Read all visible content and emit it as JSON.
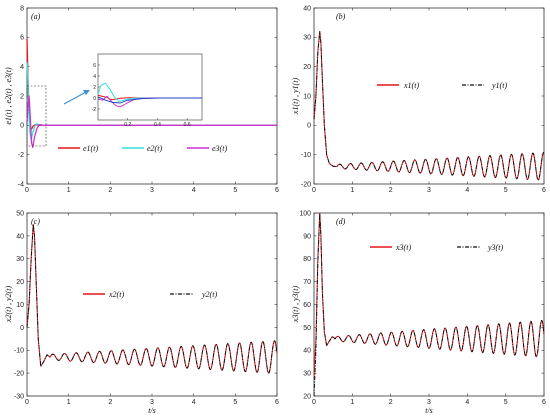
{
  "chart_data": [
    {
      "type": "line",
      "panel_label": "(a)",
      "xlabel": "",
      "ylabel": "e1(t) , e2(t) , e3(t)",
      "xlim": [
        0,
        6
      ],
      "ylim": [
        -4,
        8
      ],
      "xticks": [
        "0",
        "1",
        "2",
        "3",
        "4",
        "5",
        "6"
      ],
      "yticks": [
        "-4",
        "-2",
        "0",
        "2",
        "4",
        "6",
        "8"
      ],
      "legend_position": "center",
      "series": [
        {
          "name": "e1(t)",
          "color": "#e8151b",
          "x": [
            0,
            0.03,
            0.06,
            0.09,
            0.12,
            0.15,
            0.2,
            0.25,
            0.3,
            0.4,
            0.5,
            6
          ],
          "y": [
            5.9,
            2.5,
            0.3,
            -0.3,
            -0.2,
            -0.05,
            0.05,
            0.02,
            0,
            0,
            0,
            0
          ]
        },
        {
          "name": "e2(t)",
          "color": "#33e0e0",
          "x": [
            0,
            0.02,
            0.04,
            0.07,
            0.1,
            0.13,
            0.17,
            0.22,
            0.3,
            0.4,
            0.5,
            6
          ],
          "y": [
            4.3,
            3.2,
            1.0,
            -0.5,
            -1.0,
            -0.6,
            -0.2,
            0.1,
            0.05,
            0,
            0,
            0
          ]
        },
        {
          "name": "e3(t)",
          "color": "#cc33cc",
          "x": [
            0,
            0.02,
            0.05,
            0.08,
            0.11,
            0.14,
            0.18,
            0.24,
            0.3,
            0.4,
            0.5,
            6
          ],
          "y": [
            0.2,
            1.2,
            2.0,
            0.5,
            -1.2,
            -1.5,
            -0.8,
            -0.2,
            0.05,
            0,
            0,
            0
          ]
        }
      ],
      "inset": {
        "xlim": [
          0,
          0.7
        ],
        "ylim": [
          -4,
          8
        ],
        "xticks": [
          "0.2",
          "0.4",
          "0.6"
        ],
        "yticks": [
          "-2",
          "0",
          "2",
          "4",
          "6"
        ],
        "series": [
          {
            "color": "#e8151b",
            "x": [
              0,
              0.03,
              0.06,
              0.09,
              0.12,
              0.15,
              0.2,
              0.25,
              0.3,
              0.4,
              0.7
            ],
            "y": [
              0.5,
              0.3,
              0.1,
              -0.3,
              -0.2,
              -0.05,
              0.05,
              0.02,
              0,
              0,
              0
            ]
          },
          {
            "color": "#33e0e0",
            "x": [
              0,
              0.02,
              0.05,
              0.08,
              0.11,
              0.14,
              0.17,
              0.22,
              0.3,
              0.4,
              0.7
            ],
            "y": [
              0.7,
              2.3,
              2.7,
              1.6,
              0.2,
              -0.6,
              -0.4,
              -0.1,
              0,
              0,
              0
            ]
          },
          {
            "color": "#cc33cc",
            "x": [
              0,
              0.03,
              0.06,
              0.09,
              0.12,
              0.15,
              0.19,
              0.24,
              0.3,
              0.4,
              0.7
            ],
            "y": [
              -0.2,
              -0.4,
              0.3,
              -0.6,
              -1.4,
              -1.6,
              -1.0,
              -0.3,
              -0.05,
              0,
              0
            ]
          },
          {
            "color": "#1f3fbf",
            "x": [
              0,
              0.05,
              0.1,
              0.15,
              0.2,
              0.3,
              0.4,
              0.7
            ],
            "y": [
              0.2,
              -0.4,
              -0.8,
              -0.9,
              -0.4,
              -0.1,
              0,
              0
            ]
          }
        ]
      }
    },
    {
      "type": "line",
      "panel_label": "(b)",
      "xlabel": "",
      "ylabel": "x1(t) , y1(t)",
      "xlim": [
        0,
        6
      ],
      "ylim": [
        -20,
        40
      ],
      "xticks": [
        "0",
        "1",
        "2",
        "3",
        "4",
        "5",
        "6"
      ],
      "yticks": [
        "-20",
        "-10",
        "0",
        "10",
        "20",
        "30",
        "40"
      ],
      "legend_position": "top",
      "osc": {
        "start": 0.6,
        "base": -14,
        "amp0": 0.7,
        "amp_growth": 0.75,
        "period": 0.28
      },
      "series": [
        {
          "name": "x1(t)",
          "color": "#e8151b",
          "dash": "solid",
          "x": [
            0,
            0.05,
            0.1,
            0.15,
            0.18,
            0.22,
            0.27,
            0.33,
            0.4,
            0.5,
            0.6
          ],
          "y": [
            2,
            10,
            25,
            32,
            28,
            15,
            0,
            -10,
            -13,
            -14,
            -14
          ]
        },
        {
          "name": "y1(t)",
          "color": "#111111",
          "dash": "dashdot",
          "x": [
            0,
            0.05,
            0.1,
            0.15,
            0.18,
            0.22,
            0.27,
            0.33,
            0.4,
            0.5,
            0.6
          ],
          "y": [
            2,
            10,
            25,
            32,
            28,
            15,
            0,
            -10,
            -13,
            -14,
            -14
          ]
        }
      ]
    },
    {
      "type": "line",
      "panel_label": "(c)",
      "xlabel": "t/s",
      "ylabel": "x2(t) , y2(t)",
      "xlim": [
        0,
        6
      ],
      "ylim": [
        -30,
        50
      ],
      "xticks": [
        "0",
        "1",
        "2",
        "3",
        "4",
        "5",
        "6"
      ],
      "yticks": [
        "-30",
        "-20",
        "-10",
        "0",
        "10",
        "20",
        "30",
        "40",
        "50"
      ],
      "legend_position": "center",
      "osc": {
        "start": 0.55,
        "base": -13,
        "amp0": 1.2,
        "amp_growth": 1.1,
        "period": 0.28
      },
      "series": [
        {
          "name": "x2(t)",
          "color": "#e8151b",
          "dash": "solid",
          "x": [
            0,
            0.05,
            0.1,
            0.15,
            0.18,
            0.22,
            0.27,
            0.33,
            0.4,
            0.48,
            0.55
          ],
          "y": [
            0,
            10,
            30,
            45,
            40,
            20,
            -5,
            -17,
            -15,
            -12,
            -13
          ]
        },
        {
          "name": "y2(t)",
          "color": "#111111",
          "dash": "dashdot",
          "x": [
            0,
            0.05,
            0.1,
            0.15,
            0.18,
            0.22,
            0.27,
            0.33,
            0.4,
            0.48,
            0.55
          ],
          "y": [
            0,
            10,
            30,
            45,
            40,
            20,
            -5,
            -17,
            -15,
            -12,
            -13
          ]
        }
      ]
    },
    {
      "type": "line",
      "panel_label": "(d)",
      "xlabel": "t/s",
      "ylabel": "x3(t) , y3(t)",
      "xlim": [
        0,
        6
      ],
      "ylim": [
        20,
        100
      ],
      "xticks": [
        "0",
        "1",
        "2",
        "3",
        "4",
        "5",
        "6"
      ],
      "yticks": [
        "20",
        "30",
        "40",
        "50",
        "60",
        "70",
        "80",
        "90",
        "100"
      ],
      "legend_position": "top",
      "osc": {
        "start": 0.55,
        "base": 45,
        "amp0": 1.0,
        "amp_growth": 1.3,
        "period": 0.28
      },
      "series": [
        {
          "name": "x3(t)",
          "color": "#e8151b",
          "dash": "solid",
          "x": [
            0,
            0.05,
            0.1,
            0.15,
            0.18,
            0.22,
            0.27,
            0.33,
            0.4,
            0.48,
            0.55
          ],
          "y": [
            28,
            45,
            80,
            100,
            90,
            65,
            48,
            42,
            44,
            46,
            45
          ]
        },
        {
          "name": "y3(t)",
          "color": "#111111",
          "dash": "dashdot",
          "x": [
            0,
            0.05,
            0.1,
            0.15,
            0.18,
            0.22,
            0.27,
            0.33,
            0.4,
            0.48,
            0.55
          ],
          "y": [
            20,
            40,
            78,
            100,
            90,
            65,
            48,
            42,
            44,
            46,
            45
          ]
        }
      ]
    }
  ]
}
